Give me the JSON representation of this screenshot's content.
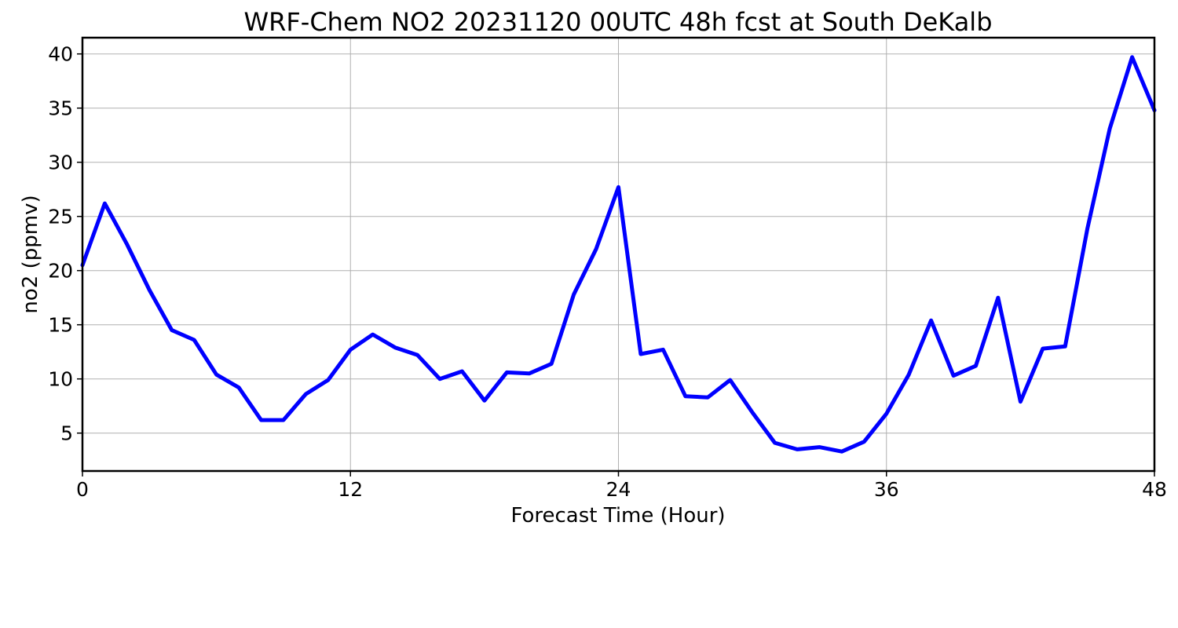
{
  "chart_data": {
    "type": "line",
    "title": "WRF-Chem NO2  20231120 00UTC 48h fcst at South DeKalb",
    "xlabel": "Forecast Time (Hour)",
    "ylabel": "no2  (ppmv)",
    "xlim": [
      0,
      48
    ],
    "ylim": [
      1.5,
      41.5
    ],
    "xticks": [
      0,
      12,
      24,
      36,
      48
    ],
    "yticks": [
      5,
      10,
      15,
      20,
      25,
      30,
      35,
      40
    ],
    "grid": true,
    "series": [
      {
        "color": "#0000ff",
        "x": [
          0,
          1,
          2,
          3,
          4,
          5,
          6,
          7,
          8,
          9,
          10,
          11,
          12,
          13,
          14,
          15,
          16,
          17,
          18,
          19,
          20,
          21,
          22,
          23,
          24,
          25,
          26,
          27,
          28,
          29,
          30,
          31,
          32,
          33,
          34,
          35,
          36,
          37,
          38,
          39,
          40,
          41,
          42,
          43,
          44,
          45,
          46,
          47,
          48
        ],
        "values": [
          20.5,
          26.2,
          22.4,
          18.2,
          14.5,
          13.6,
          10.4,
          9.2,
          6.2,
          6.2,
          8.6,
          9.9,
          12.7,
          14.1,
          12.9,
          12.2,
          10.0,
          10.7,
          8.0,
          10.6,
          10.5,
          11.4,
          17.8,
          22.0,
          27.7,
          12.3,
          12.7,
          8.4,
          8.3,
          9.9,
          6.9,
          4.1,
          3.5,
          3.7,
          3.3,
          4.2,
          6.8,
          10.4,
          15.4,
          10.3,
          11.2,
          17.5,
          7.9,
          12.8,
          13.0,
          23.9,
          33.1,
          39.7,
          34.8
        ]
      }
    ]
  }
}
